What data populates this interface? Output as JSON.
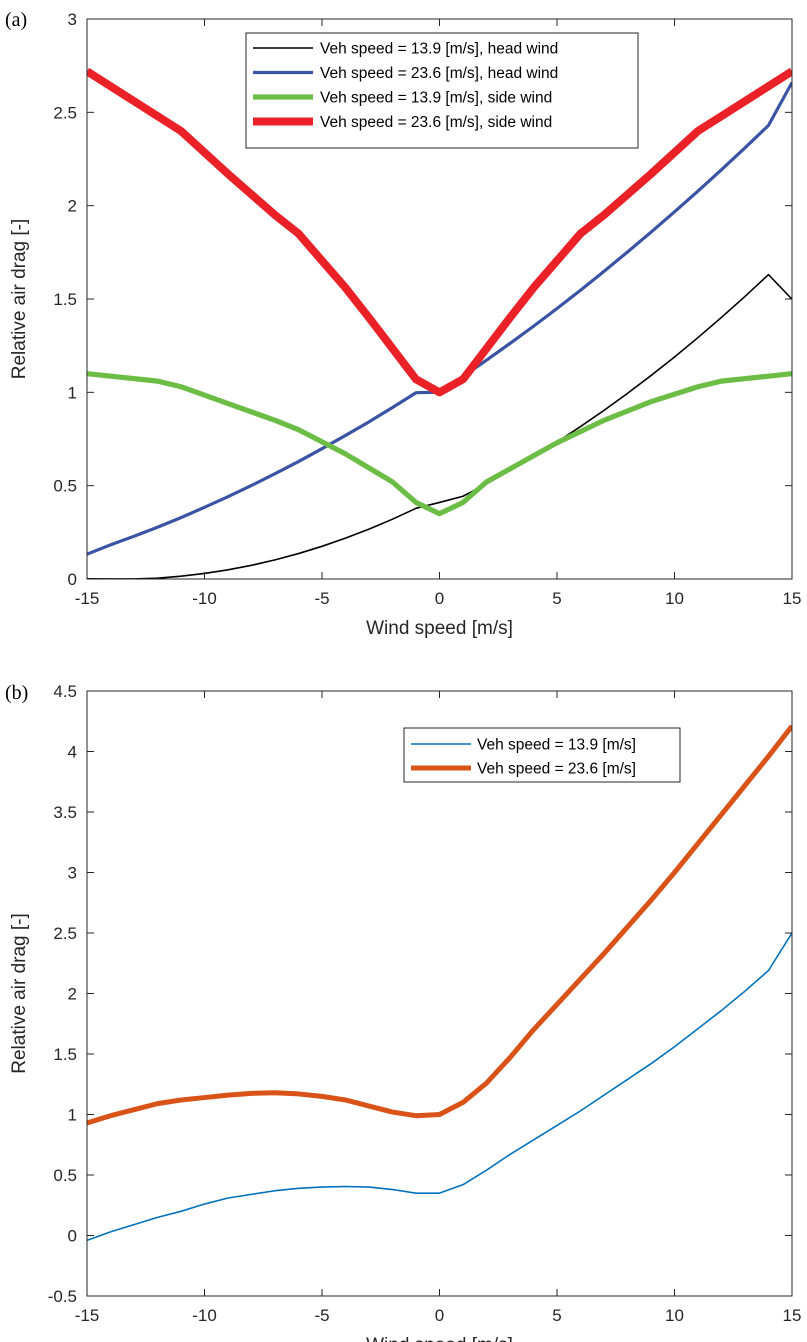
{
  "chart_data": [
    {
      "panel_label": "(a)",
      "type": "line",
      "xlabel": "Wind speed [m/s]",
      "ylabel": "Relative air drag [-]",
      "xlim": [
        -15,
        15
      ],
      "ylim": [
        0,
        3
      ],
      "xticks": [
        -15,
        -10,
        -5,
        0,
        5,
        10,
        15
      ],
      "yticks": [
        0,
        0.5,
        1,
        1.5,
        2,
        2.5,
        3
      ],
      "xtick_labels": [
        "-15",
        "-10",
        "-5",
        "0",
        "5",
        "10",
        "15"
      ],
      "ytick_labels": [
        "0",
        "0.5",
        "1",
        "1.5",
        "2",
        "2.5",
        "3"
      ],
      "grid": false,
      "legend_position": "top-right",
      "series": [
        {
          "name": "Veh speed = 13.9 [m/s], head wind",
          "color": "#000000",
          "x": [
            -15,
            -14,
            -13,
            -12,
            -11,
            -10,
            -9,
            -8,
            -7,
            -6,
            -5,
            -4,
            -3,
            -2,
            -1,
            0,
            1,
            2,
            3,
            4,
            5,
            6,
            7,
            8,
            9,
            10,
            11,
            12,
            13,
            14,
            15
          ],
          "y": [
            0.0013,
            0.0002,
            0.0001,
            0.0045,
            0.0152,
            0.0297,
            0.0491,
            0.0733,
            0.1024,
            0.1363,
            0.1751,
            0.2187,
            0.2671,
            0.3204,
            0.3786,
            0.4102,
            0.4434,
            0.5093,
            0.5806,
            0.6556,
            0.7339,
            0.8166,
            0.9034,
            0.9945,
            1.0898,
            1.1895,
            1.2934,
            1.4015,
            1.5139,
            1.6306,
            1.4986
          ]
        },
        {
          "name": "Veh speed = 23.6 [m/s], head wind",
          "color": "#3a53a4",
          "x": [
            -15,
            -14,
            -13,
            -12,
            -11,
            -10,
            -9,
            -8,
            -7,
            -6,
            -5,
            -4,
            -3,
            -2,
            -1,
            0,
            1,
            2,
            3,
            4,
            5,
            6,
            7,
            8,
            9,
            10,
            11,
            12,
            13,
            14,
            15
          ],
          "y": [
            0.133,
            0.183,
            0.229,
            0.277,
            0.329,
            0.384,
            0.441,
            0.501,
            0.564,
            0.629,
            0.698,
            0.769,
            0.842,
            0.919,
            0.998,
            1.0,
            1.085,
            1.172,
            1.262,
            1.354,
            1.449,
            1.547,
            1.648,
            1.752,
            1.858,
            1.967,
            2.078,
            2.193,
            2.31,
            2.43,
            2.66
          ]
        },
        {
          "name": "Veh speed = 13.9 [m/s], side wind",
          "color": "#6cbd45",
          "x": [
            -15,
            -12,
            -11,
            -9,
            -7,
            -6,
            -4,
            -2,
            -1,
            0,
            1,
            2,
            3,
            5,
            7,
            9,
            11,
            12,
            15
          ],
          "y": [
            1.1,
            1.06,
            1.03,
            0.94,
            0.85,
            0.8,
            0.67,
            0.52,
            0.41,
            0.35,
            0.41,
            0.52,
            0.59,
            0.73,
            0.85,
            0.95,
            1.03,
            1.06,
            1.1
          ]
        },
        {
          "name": "Veh speed = 23.6 [m/s], side wind",
          "color": "#ea2227",
          "x": [
            -15,
            -12,
            -11,
            -9,
            -7,
            -6,
            -4,
            -3,
            -1,
            0,
            1,
            3,
            4,
            6,
            7,
            9,
            11,
            12,
            15
          ],
          "y": [
            2.72,
            2.48,
            2.4,
            2.17,
            1.95,
            1.85,
            1.56,
            1.4,
            1.07,
            1.0,
            1.07,
            1.4,
            1.56,
            1.85,
            1.95,
            2.17,
            2.4,
            2.48,
            2.72
          ]
        }
      ]
    },
    {
      "panel_label": "(b)",
      "type": "line",
      "xlabel": "Wind speed [m/s]",
      "ylabel": "Relative air drag [-]",
      "xlim": [
        -15,
        15
      ],
      "ylim": [
        -0.5,
        4.5
      ],
      "xticks": [
        -15,
        -10,
        -5,
        0,
        5,
        10,
        15
      ],
      "yticks": [
        -0.5,
        0,
        0.5,
        1,
        1.5,
        2,
        2.5,
        3,
        3.5,
        4,
        4.5
      ],
      "xtick_labels": [
        "-15",
        "-10",
        "-5",
        "0",
        "5",
        "10",
        "15"
      ],
      "ytick_labels": [
        "-0.5",
        "0",
        "0.5",
        "1",
        "1.5",
        "2",
        "2.5",
        "3",
        "3.5",
        "4",
        "4.5"
      ],
      "grid": false,
      "legend_position": "top-right",
      "series": [
        {
          "name": "Veh speed = 13.9 [m/s]",
          "color": "#0072bd",
          "x": [
            -15,
            -14,
            -13,
            -12,
            -11,
            -10,
            -9,
            -8,
            -7,
            -6,
            -5,
            -4,
            -3,
            -2,
            -1,
            0,
            1,
            2,
            3,
            4,
            5,
            6,
            7,
            8,
            9,
            10,
            11,
            12,
            13,
            14,
            15
          ],
          "y": [
            -0.04,
            0.03,
            0.09,
            0.15,
            0.2,
            0.26,
            0.31,
            0.34,
            0.37,
            0.39,
            0.4,
            0.405,
            0.4,
            0.38,
            0.35,
            0.35,
            0.42,
            0.54,
            0.67,
            0.79,
            0.91,
            1.03,
            1.16,
            1.29,
            1.42,
            1.56,
            1.71,
            1.86,
            2.02,
            2.19,
            2.5
          ]
        },
        {
          "name": "Veh speed = 23.6 [m/s]",
          "color": "#d95319",
          "x": [
            -15,
            -14,
            -13,
            -12,
            -11,
            -10,
            -9,
            -8,
            -7,
            -6,
            -5,
            -4,
            -3,
            -2,
            -1,
            0,
            1,
            2,
            3,
            4,
            5,
            6,
            7,
            8,
            9,
            10,
            11,
            12,
            13,
            14,
            15
          ],
          "y": [
            0.93,
            0.99,
            1.04,
            1.09,
            1.12,
            1.14,
            1.16,
            1.175,
            1.18,
            1.17,
            1.15,
            1.12,
            1.07,
            1.02,
            0.99,
            1.0,
            1.1,
            1.26,
            1.47,
            1.7,
            1.91,
            2.12,
            2.33,
            2.55,
            2.77,
            3.0,
            3.24,
            3.48,
            3.72,
            3.96,
            4.21
          ]
        }
      ]
    }
  ]
}
